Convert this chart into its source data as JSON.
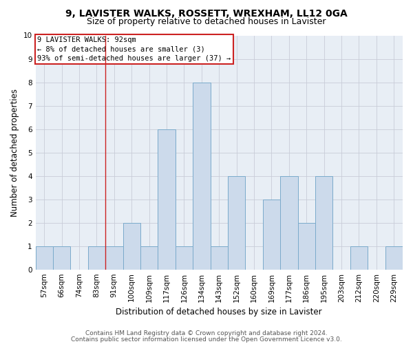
{
  "title1": "9, LAVISTER WALKS, ROSSETT, WREXHAM, LL12 0GA",
  "title2": "Size of property relative to detached houses in Lavister",
  "xlabel": "Distribution of detached houses by size in Lavister",
  "ylabel": "Number of detached properties",
  "categories": [
    "57sqm",
    "66sqm",
    "74sqm",
    "83sqm",
    "91sqm",
    "100sqm",
    "109sqm",
    "117sqm",
    "126sqm",
    "134sqm",
    "143sqm",
    "152sqm",
    "160sqm",
    "169sqm",
    "177sqm",
    "186sqm",
    "195sqm",
    "203sqm",
    "212sqm",
    "220sqm",
    "229sqm"
  ],
  "values": [
    1,
    1,
    0,
    1,
    1,
    2,
    1,
    6,
    1,
    8,
    1,
    4,
    0,
    3,
    4,
    2,
    4,
    0,
    1,
    0,
    1
  ],
  "bar_color": "#ccdaeb",
  "bar_edge_color": "#7aaacb",
  "vline_index": 4,
  "vline_color": "#cc2222",
  "annotation_box_text": "9 LAVISTER WALKS: 92sqm\n← 8% of detached houses are smaller (3)\n93% of semi-detached houses are larger (37) →",
  "annotation_box_facecolor": "#ffffff",
  "annotation_box_edgecolor": "#cc2222",
  "ylim": [
    0,
    10
  ],
  "yticks": [
    0,
    1,
    2,
    3,
    4,
    5,
    6,
    7,
    8,
    9,
    10
  ],
  "grid_color": "#c8ccd8",
  "bg_color": "#e8eef5",
  "footer1": "Contains HM Land Registry data © Crown copyright and database right 2024.",
  "footer2": "Contains public sector information licensed under the Open Government Licence v3.0.",
  "title_fontsize": 10,
  "subtitle_fontsize": 9,
  "axis_label_fontsize": 8.5,
  "tick_fontsize": 7.5,
  "annotation_fontsize": 7.5,
  "footer_fontsize": 6.5
}
